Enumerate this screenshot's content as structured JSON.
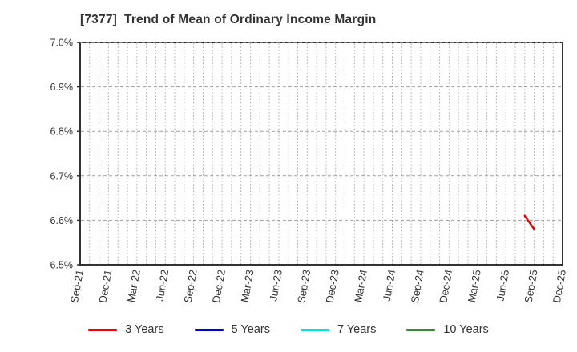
{
  "header": {
    "title": "[7377]  Trend of Mean of Ordinary Income Margin",
    "title_color": "#333333"
  },
  "chart_data": {
    "type": "line",
    "title": "[7377]  Trend of Mean of Ordinary Income Margin",
    "xlabel": "",
    "ylabel": "",
    "ylim": [
      6.5,
      7.0
    ],
    "y_tick_step": 0.1,
    "y_ticks": [
      {
        "value": 7.0,
        "label": "7.0%"
      },
      {
        "value": 6.9,
        "label": "6.9%"
      },
      {
        "value": 6.8,
        "label": "6.8%"
      },
      {
        "value": 6.7,
        "label": "6.7%"
      },
      {
        "value": 6.6,
        "label": "6.6%"
      },
      {
        "value": 6.5,
        "label": "6.5%"
      }
    ],
    "x_axis": {
      "unit": "month",
      "start_label": "Sep-21",
      "end_label": "Dec-25",
      "span_months": 51,
      "tick_labels": [
        {
          "month_index": 0,
          "label": "Sep-21"
        },
        {
          "month_index": 3,
          "label": "Dec-21"
        },
        {
          "month_index": 6,
          "label": "Mar-22"
        },
        {
          "month_index": 9,
          "label": "Jun-22"
        },
        {
          "month_index": 12,
          "label": "Sep-22"
        },
        {
          "month_index": 15,
          "label": "Dec-22"
        },
        {
          "month_index": 18,
          "label": "Mar-23"
        },
        {
          "month_index": 21,
          "label": "Jun-23"
        },
        {
          "month_index": 24,
          "label": "Sep-23"
        },
        {
          "month_index": 27,
          "label": "Dec-23"
        },
        {
          "month_index": 30,
          "label": "Mar-24"
        },
        {
          "month_index": 33,
          "label": "Jun-24"
        },
        {
          "month_index": 36,
          "label": "Sep-24"
        },
        {
          "month_index": 39,
          "label": "Dec-24"
        },
        {
          "month_index": 42,
          "label": "Mar-25"
        },
        {
          "month_index": 45,
          "label": "Jun-25"
        },
        {
          "month_index": 48,
          "label": "Sep-25"
        },
        {
          "month_index": 51,
          "label": "Dec-25"
        }
      ]
    },
    "grid": {
      "vertical": "dotted, every month",
      "horizontal": "dashed, every 0.1%",
      "color": "#a8a8a8"
    },
    "legend_position": "bottom-center",
    "series": [
      {
        "name": "3 Years",
        "color": "#ee0000",
        "points": [
          {
            "month_index": 47,
            "x": "Aug-25",
            "value": 6.61
          },
          {
            "month_index": 48,
            "x": "Sep-25",
            "value": 6.58
          }
        ]
      },
      {
        "name": "5 Years",
        "color": "#0000dd",
        "points": []
      },
      {
        "name": "7 Years",
        "color": "#00e0e0",
        "points": []
      },
      {
        "name": "10 Years",
        "color": "#2e8b2e",
        "points": []
      }
    ]
  }
}
